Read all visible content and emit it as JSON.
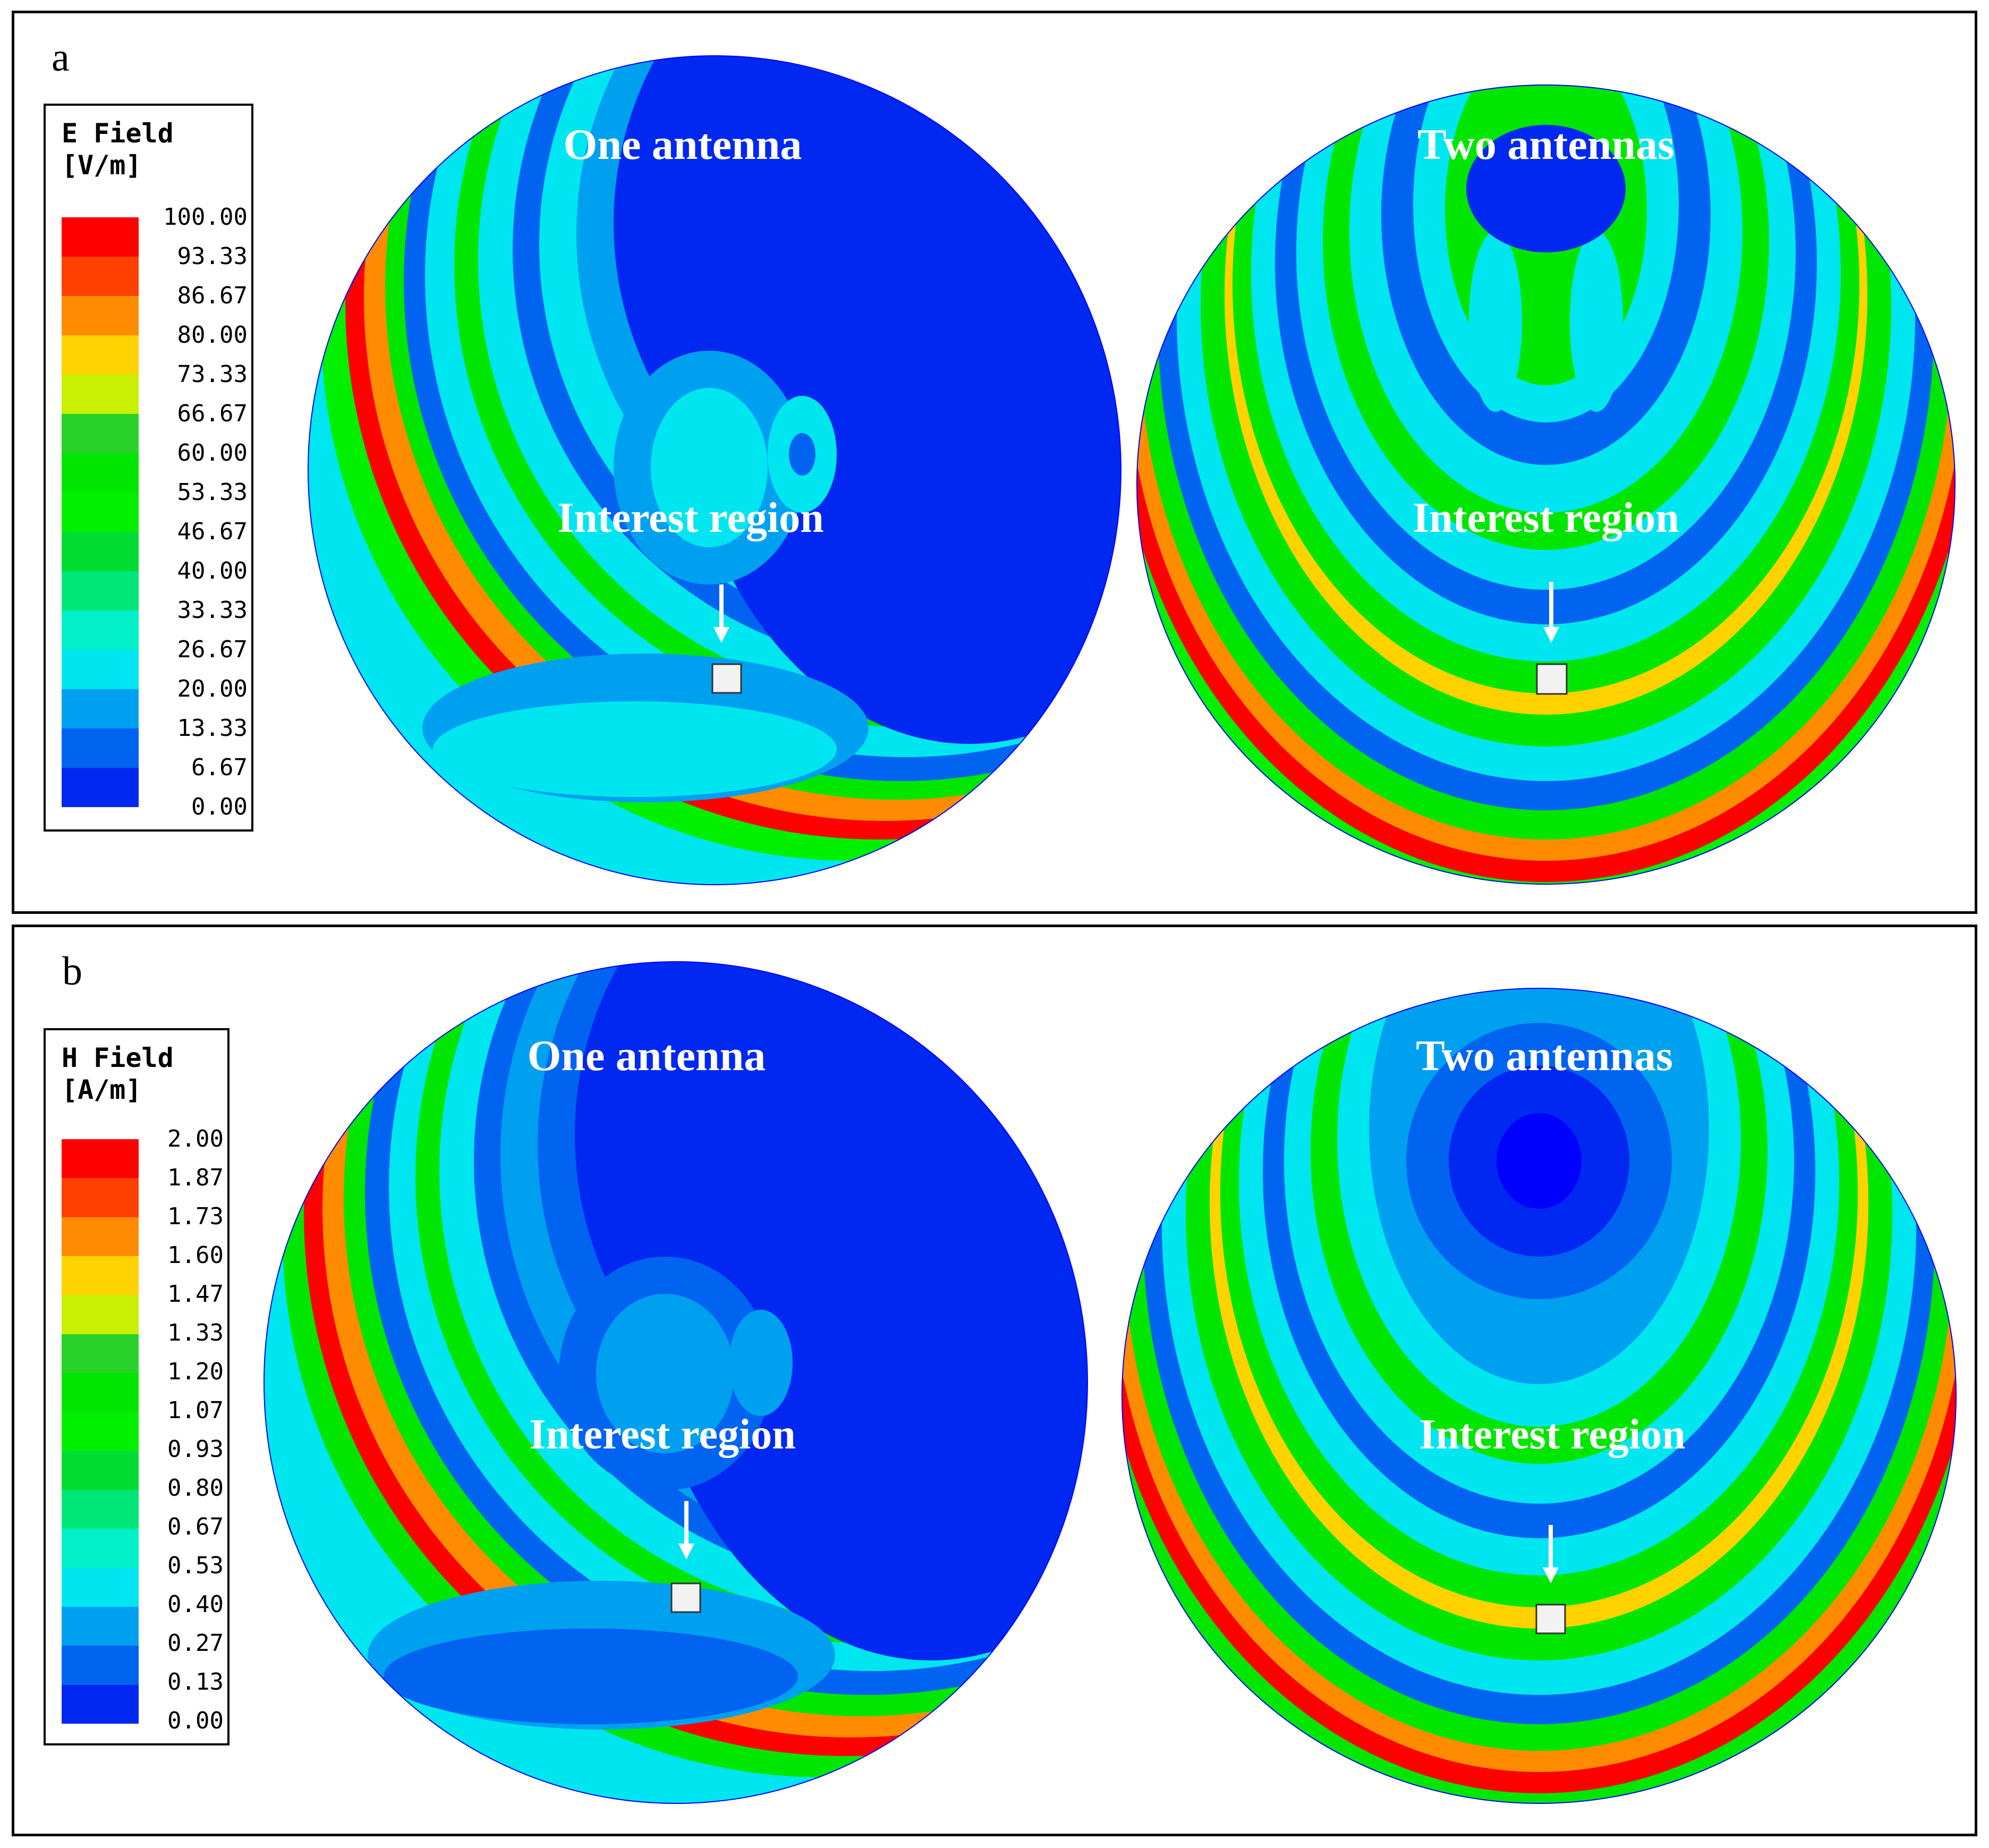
{
  "panels": [
    {
      "letter": "a",
      "legend": {
        "title_line1": "E Field",
        "title_line2": "[V/m]",
        "ticks": [
          "100.00",
          "93.33",
          "86.67",
          "80.00",
          "73.33",
          "66.67",
          "60.00",
          "53.33",
          "46.67",
          "40.00",
          "33.33",
          "26.67",
          "20.00",
          "13.33",
          "6.67",
          "0.00"
        ]
      },
      "left_title": "One antenna",
      "right_title": "Two antennas",
      "region_label": "Interest region"
    },
    {
      "letter": "b",
      "legend": {
        "title_line1": "H Field",
        "title_line2": "[A/m]",
        "ticks": [
          "2.00",
          "1.87",
          "1.73",
          "1.60",
          "1.47",
          "1.33",
          "1.20",
          "1.07",
          "0.93",
          "0.80",
          "0.67",
          "0.53",
          "0.40",
          "0.27",
          "0.13",
          "0.00"
        ]
      },
      "left_title": "One antenna",
      "right_title": "Two antennas",
      "region_label": "Interest region"
    }
  ],
  "colormap": [
    "#ff0000",
    "#ff4000",
    "#ff8c00",
    "#ffd200",
    "#c8f000",
    "#28d228",
    "#00e600",
    "#00f000",
    "#00dc32",
    "#00e678",
    "#00f0c8",
    "#00e6f0",
    "#00a0f0",
    "#0064f0",
    "#0028f0",
    "#0000ff"
  ]
}
